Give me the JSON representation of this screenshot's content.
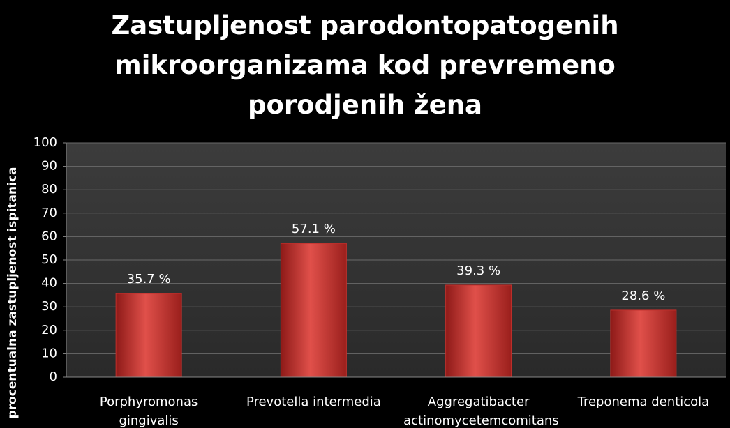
{
  "chart_data": {
    "type": "bar",
    "title": "Zastupljenost parodontopatogenih mikroorganizama kod prevremeno porodjenih žena",
    "y_label": "procentualna zastupljenost ispitanica",
    "categories": [
      "Porphyromonas gingivalis",
      "Prevotella intermedia",
      "Aggregatibacter actinomycetemcomitans",
      "Treponema denticola"
    ],
    "values": [
      35.7,
      57.1,
      39.3,
      28.6
    ],
    "value_labels": [
      "35.7 %",
      "57.1 %",
      "39.3 %",
      "28.6 %"
    ],
    "color": "#c0302c",
    "ylim": [
      0,
      100
    ],
    "yticks": [
      0,
      10,
      20,
      30,
      40,
      50,
      60,
      70,
      80,
      90,
      100
    ],
    "grid": true
  }
}
